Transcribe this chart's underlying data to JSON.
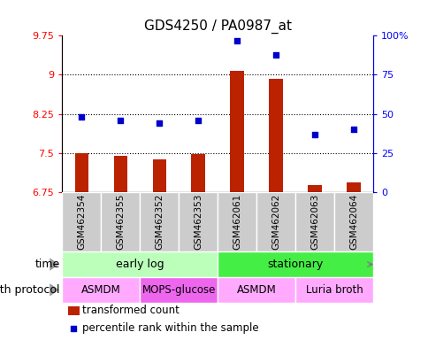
{
  "title": "GDS4250 / PA0987_at",
  "samples": [
    "GSM462354",
    "GSM462355",
    "GSM462352",
    "GSM462353",
    "GSM462061",
    "GSM462062",
    "GSM462063",
    "GSM462064"
  ],
  "bar_values": [
    7.5,
    7.45,
    7.38,
    7.48,
    9.08,
    8.93,
    6.88,
    6.93
  ],
  "scatter_values": [
    48,
    46,
    44,
    46,
    97,
    88,
    37,
    40
  ],
  "ylim_left": [
    6.75,
    9.75
  ],
  "ylim_right": [
    0,
    100
  ],
  "yticks_left": [
    6.75,
    7.5,
    8.25,
    9.0,
    9.75
  ],
  "yticks_right": [
    0,
    25,
    50,
    75,
    100
  ],
  "ytick_labels_left": [
    "6.75",
    "7.5",
    "8.25",
    "9",
    "9.75"
  ],
  "ytick_labels_right": [
    "0",
    "25",
    "50",
    "75",
    "100%"
  ],
  "hlines": [
    7.5,
    8.25,
    9.0
  ],
  "bar_color": "#bb2200",
  "scatter_color": "#0000cc",
  "bar_bottom": 6.75,
  "time_groups": [
    {
      "label": "early log",
      "start": 0,
      "end": 4,
      "color": "#bbffbb"
    },
    {
      "label": "stationary",
      "start": 4,
      "end": 8,
      "color": "#44ee44"
    }
  ],
  "protocol_groups": [
    {
      "label": "ASMDM",
      "start": 0,
      "end": 2,
      "color": "#ffaaff"
    },
    {
      "label": "MOPS-glucose",
      "start": 2,
      "end": 4,
      "color": "#ee66ee"
    },
    {
      "label": "ASMDM",
      "start": 4,
      "end": 6,
      "color": "#ffaaff"
    },
    {
      "label": "Luria broth",
      "start": 6,
      "end": 8,
      "color": "#ffaaff"
    }
  ],
  "row_label_time": "time",
  "row_label_protocol": "growth protocol",
  "legend_bar_label": "transformed count",
  "legend_scatter_label": "percentile rank within the sample",
  "tick_area_bg": "#cccccc",
  "bar_width": 0.35
}
